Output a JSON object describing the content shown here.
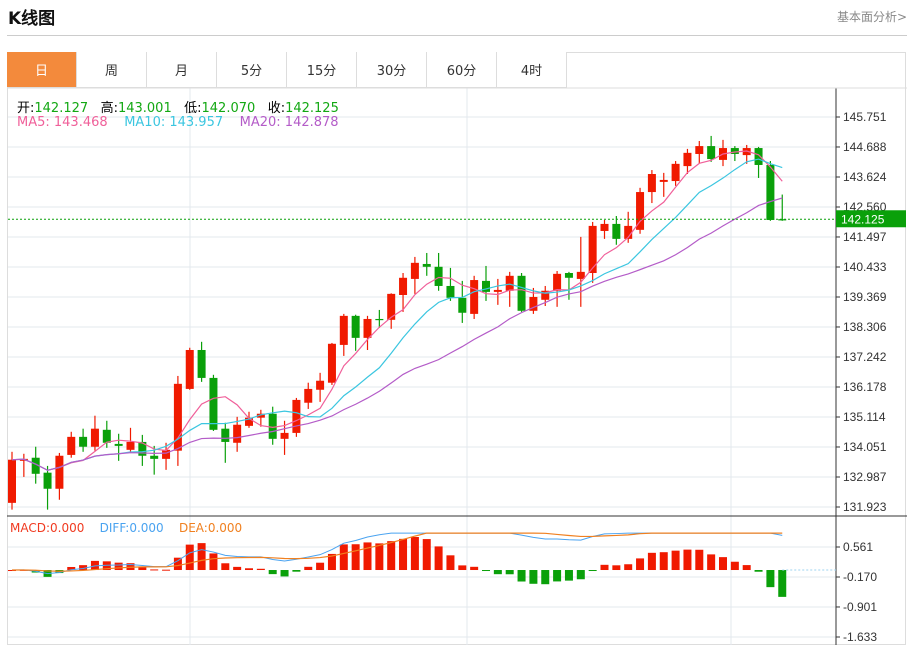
{
  "header": {
    "title": "K线图",
    "link": "基本面分析>"
  },
  "tabs": [
    "日",
    "周",
    "月",
    "5分",
    "15分",
    "30分",
    "60分",
    "4时"
  ],
  "active_tab": 0,
  "ohlc": {
    "open_label": "开:",
    "open": "142.127",
    "high_label": "高:",
    "high": "143.001",
    "low_label": "低:",
    "low": "142.070",
    "close_label": "收:",
    "close": "142.125"
  },
  "ma": {
    "ma5": "MA5: 143.468",
    "ma10": "MA10: 143.957",
    "ma20": "MA20: 142.878"
  },
  "macd": {
    "macd": "MACD:0.000",
    "diff": "DIFF:0.000",
    "dea": "DEA:0.000"
  },
  "colors": {
    "up": "#f01a00",
    "down": "#0aa00a",
    "ma5": "#f0609a",
    "ma10": "#3bc6e0",
    "ma20": "#b45cc8",
    "diff": "#4aa3f0",
    "dea": "#f08020",
    "accent": "#f38a3c"
  },
  "chart_data": {
    "type": "candlestick",
    "price_axis_ticks": [
      "145.751",
      "144.688",
      "143.624",
      "142.560",
      "141.497",
      "140.433",
      "139.369",
      "138.306",
      "137.242",
      "136.178",
      "135.114",
      "134.051",
      "132.987",
      "131.923"
    ],
    "ylim": [
      131.923,
      145.751
    ],
    "last_price": "142.125",
    "macd_axis_ticks": [
      "0.561",
      "-0.170",
      "-0.901",
      "-1.633"
    ],
    "macd_ylim": [
      -1.633,
      0.561
    ],
    "candles_ohlc": [
      [
        132.07,
        133.88,
        131.83,
        133.6
      ],
      [
        133.56,
        133.81,
        132.99,
        133.63
      ],
      [
        133.67,
        134.06,
        132.75,
        133.1
      ],
      [
        133.14,
        133.38,
        131.83,
        132.57
      ],
      [
        132.57,
        133.84,
        132.18,
        133.74
      ],
      [
        133.77,
        134.59,
        133.67,
        134.41
      ],
      [
        134.41,
        134.7,
        133.88,
        134.06
      ],
      [
        134.06,
        135.16,
        133.92,
        134.7
      ],
      [
        134.66,
        134.98,
        134.02,
        134.2
      ],
      [
        134.16,
        134.52,
        133.56,
        134.09
      ],
      [
        133.95,
        134.73,
        133.88,
        134.23
      ],
      [
        134.23,
        134.48,
        133.38,
        133.74
      ],
      [
        133.74,
        134.09,
        133.07,
        133.63
      ],
      [
        133.63,
        134.2,
        133.24,
        133.95
      ],
      [
        133.92,
        136.57,
        133.38,
        136.29
      ],
      [
        136.11,
        137.57,
        136.08,
        137.49
      ],
      [
        137.49,
        137.78,
        136.36,
        136.5
      ],
      [
        136.5,
        136.61,
        134.62,
        134.66
      ],
      [
        134.7,
        134.91,
        133.49,
        134.23
      ],
      [
        134.2,
        135.12,
        133.88,
        134.84
      ],
      [
        134.8,
        135.3,
        134.73,
        135.09
      ],
      [
        135.09,
        135.37,
        134.77,
        135.23
      ],
      [
        135.23,
        135.48,
        134.13,
        134.34
      ],
      [
        134.34,
        134.98,
        133.77,
        134.55
      ],
      [
        134.55,
        135.79,
        134.41,
        135.72
      ],
      [
        135.62,
        136.33,
        135.4,
        136.11
      ],
      [
        136.08,
        136.68,
        135.65,
        136.4
      ],
      [
        136.33,
        137.74,
        136.25,
        137.71
      ],
      [
        137.67,
        138.77,
        137.28,
        138.7
      ],
      [
        138.7,
        138.74,
        137.46,
        137.92
      ],
      [
        137.92,
        138.7,
        137.49,
        138.59
      ],
      [
        138.59,
        138.91,
        138.27,
        138.56
      ],
      [
        138.56,
        139.5,
        138.24,
        139.48
      ],
      [
        139.44,
        140.22,
        138.84,
        140.05
      ],
      [
        140.01,
        140.79,
        139.48,
        140.58
      ],
      [
        140.54,
        140.93,
        140.12,
        140.44
      ],
      [
        140.44,
        140.93,
        139.59,
        139.76
      ],
      [
        139.76,
        140.4,
        139.23,
        139.34
      ],
      [
        139.34,
        139.94,
        138.45,
        138.81
      ],
      [
        138.77,
        140.12,
        138.59,
        139.97
      ],
      [
        139.94,
        140.47,
        139.23,
        139.55
      ],
      [
        139.55,
        140.01,
        139.09,
        139.62
      ],
      [
        139.59,
        140.26,
        139.02,
        140.12
      ],
      [
        140.12,
        140.22,
        138.84,
        138.88
      ],
      [
        138.88,
        139.69,
        138.77,
        139.37
      ],
      [
        139.27,
        139.76,
        139.05,
        139.59
      ],
      [
        139.59,
        140.29,
        139.02,
        140.19
      ],
      [
        140.22,
        140.26,
        139.27,
        140.05
      ],
      [
        140.01,
        141.5,
        139.02,
        140.26
      ],
      [
        140.22,
        142.03,
        139.87,
        141.89
      ],
      [
        141.71,
        142.1,
        141.43,
        141.96
      ],
      [
        141.96,
        142.24,
        141.22,
        141.43
      ],
      [
        141.43,
        142.39,
        141.29,
        141.89
      ],
      [
        141.75,
        143.24,
        141.61,
        143.09
      ],
      [
        143.09,
        143.87,
        142.7,
        143.73
      ],
      [
        143.45,
        143.77,
        142.92,
        143.52
      ],
      [
        143.48,
        144.19,
        143.31,
        144.09
      ],
      [
        144.01,
        144.62,
        143.73,
        144.48
      ],
      [
        144.44,
        144.9,
        144.12,
        144.72
      ],
      [
        144.72,
        145.08,
        144.16,
        144.26
      ],
      [
        144.23,
        144.94,
        144.01,
        144.65
      ],
      [
        144.65,
        144.72,
        144.19,
        144.44
      ],
      [
        144.4,
        144.76,
        144.09,
        144.65
      ],
      [
        144.65,
        144.69,
        143.59,
        144.05
      ],
      [
        144.05,
        144.19,
        142.07,
        142.1
      ],
      [
        142.127,
        143.001,
        142.07,
        142.125
      ]
    ]
  }
}
